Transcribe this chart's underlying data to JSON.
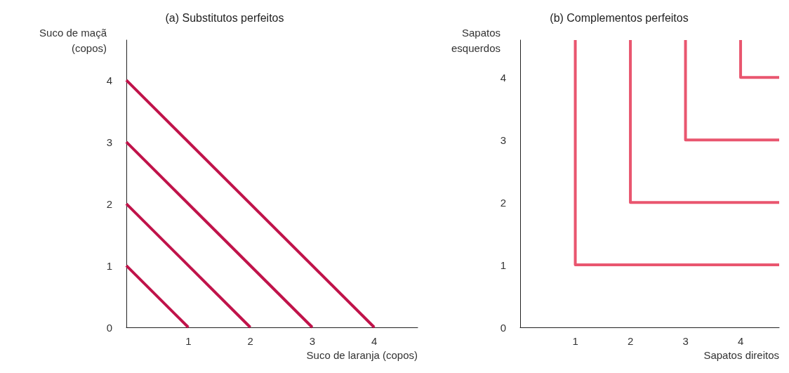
{
  "chart_data": [
    {
      "type": "line",
      "title": "(a) Substitutos perfeitos",
      "xlabel": "Suco de laranja (copos)",
      "ylabel": "Suco de maçã\n(copos)",
      "xlim": [
        0,
        4.7
      ],
      "ylim": [
        0,
        4.65
      ],
      "xticks": [
        1,
        2,
        3,
        4
      ],
      "yticks": [
        0,
        1,
        2,
        3,
        4
      ],
      "grid": false,
      "marker": "none",
      "line_style": "solid",
      "series": [
        {
          "color": "#c0134a",
          "x": [
            0,
            1
          ],
          "values": [
            1,
            0
          ]
        },
        {
          "color": "#c0134a",
          "x": [
            0,
            2
          ],
          "values": [
            2,
            0
          ]
        },
        {
          "color": "#c0134a",
          "x": [
            0,
            3
          ],
          "values": [
            3,
            0
          ]
        },
        {
          "color": "#c0134a",
          "x": [
            0,
            4
          ],
          "values": [
            4,
            0
          ]
        }
      ]
    },
    {
      "type": "line",
      "title": "(b) Complementos perfeitos",
      "xlabel": "Sapatos direitos",
      "ylabel": "Sapatos\nesquerdos",
      "xlim": [
        0,
        4.7
      ],
      "ylim": [
        0,
        4.6
      ],
      "xticks": [
        1,
        2,
        3,
        4
      ],
      "yticks": [
        0,
        1,
        2,
        3,
        4
      ],
      "grid": false,
      "marker": "none",
      "line_style": "solid",
      "series": [
        {
          "color": "#e9566f",
          "x": [
            1,
            1,
            4.7
          ],
          "values": [
            4.6,
            1,
            1
          ]
        },
        {
          "color": "#e9566f",
          "x": [
            2,
            2,
            4.7
          ],
          "values": [
            4.6,
            2,
            2
          ]
        },
        {
          "color": "#e9566f",
          "x": [
            3,
            3,
            4.7
          ],
          "values": [
            4.6,
            3,
            3
          ]
        },
        {
          "color": "#e9566f",
          "x": [
            4,
            4,
            4.7
          ],
          "values": [
            4.6,
            4,
            4
          ]
        }
      ]
    }
  ]
}
